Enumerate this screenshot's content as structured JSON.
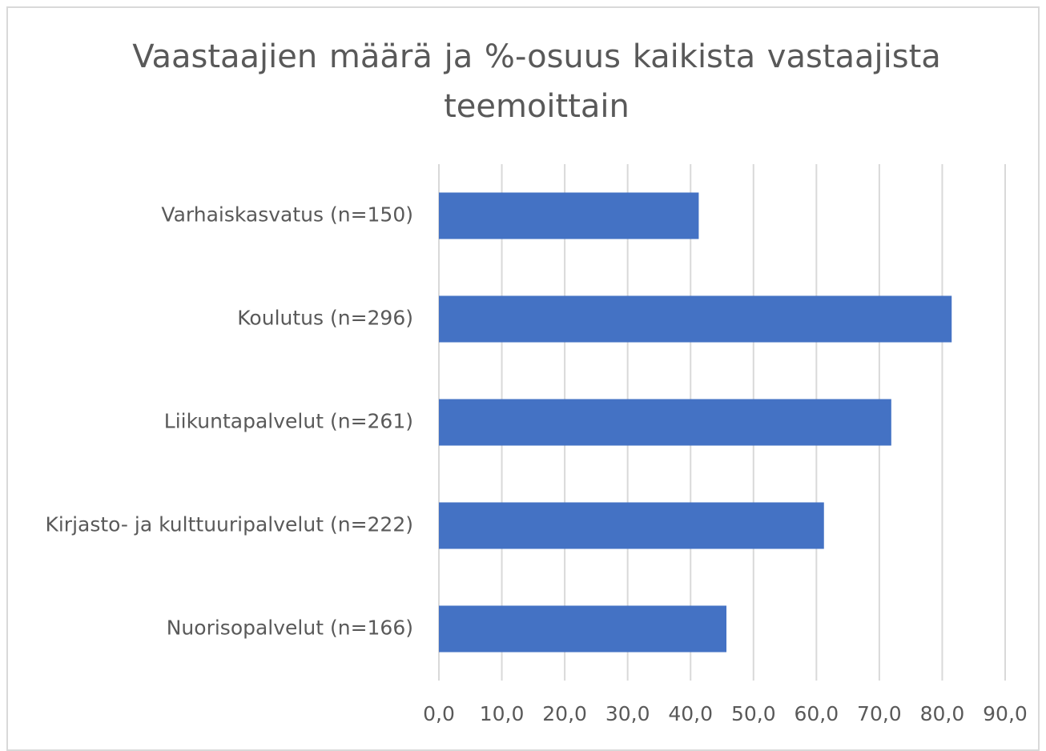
{
  "chart_data": {
    "type": "bar",
    "orientation": "horizontal",
    "title": "Vaastaajien määrä ja %-osuus kaikista  vastaajista teemoittain",
    "categories": [
      "Varhaiskasvatus (n=150)",
      "Koulutus (n=296)",
      "Liikuntapalvelut (n=261)",
      "Kirjasto- ja kulttuuripalvelut (n=222)",
      "Nuorisopalvelut (n=166)"
    ],
    "values": [
      41.3,
      81.5,
      71.9,
      61.2,
      45.7
    ],
    "color": "#4472c4",
    "xlim": [
      0,
      90
    ],
    "xticks": [
      {
        "value": 0,
        "label": "0,0"
      },
      {
        "value": 10,
        "label": "10,0"
      },
      {
        "value": 20,
        "label": "20,0"
      },
      {
        "value": 30,
        "label": "30,0"
      },
      {
        "value": 40,
        "label": "40,0"
      },
      {
        "value": 50,
        "label": "50,0"
      },
      {
        "value": 60,
        "label": "60,0"
      },
      {
        "value": 70,
        "label": "70,0"
      },
      {
        "value": 80,
        "label": "80,0"
      },
      {
        "value": 90,
        "label": "90,0"
      }
    ],
    "grid": true
  }
}
